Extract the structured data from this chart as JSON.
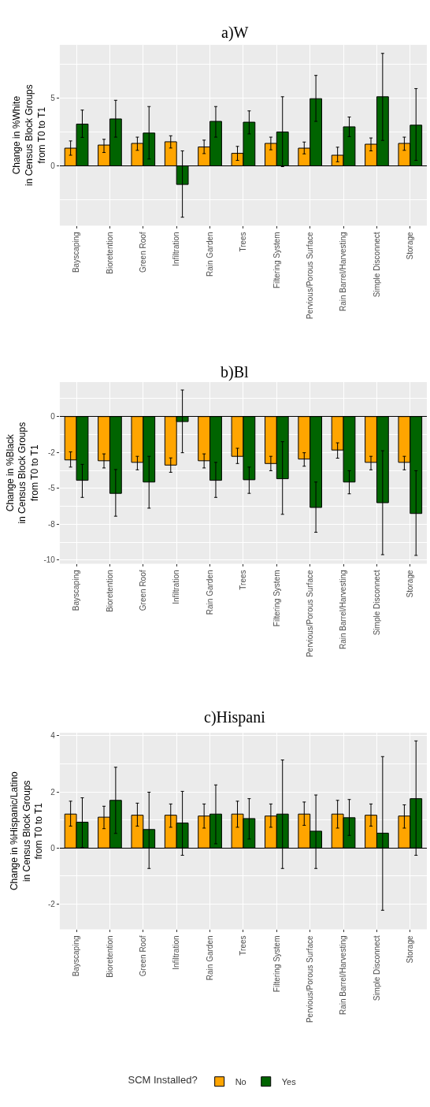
{
  "chart_data": [
    {
      "type": "bar",
      "title": "a)W",
      "ylabel": "Change in %White\nin Census Block Groups\nfrom T0 to T1",
      "categories": [
        "Bayscaping",
        "Bioretention",
        "Green Roof",
        "Infiltration",
        "Rain Garden",
        "Trees",
        "Filtering System",
        "Pervious/Porous Surface",
        "Rain Barrel/Harvesting",
        "Simple Disconnect",
        "Storage"
      ],
      "ylim": [
        -4.4,
        8.9
      ],
      "yticks": [
        0,
        5
      ],
      "grid": true,
      "legend": "bottom",
      "legend_title": "SCM Installed?",
      "series": [
        {
          "name": "No",
          "color": "#ffa500",
          "values": [
            1.3,
            1.53,
            1.65,
            1.77,
            1.39,
            0.92,
            1.65,
            1.3,
            0.78,
            1.59,
            1.65
          ],
          "errors": [
            [
              0.78,
              1.83
            ],
            [
              0.98,
              1.95
            ],
            [
              1.14,
              2.11
            ],
            [
              1.31,
              2.21
            ],
            [
              0.9,
              1.89
            ],
            [
              0.4,
              1.43
            ],
            [
              1.18,
              2.11
            ],
            [
              0.88,
              1.75
            ],
            [
              0.3,
              1.37
            ],
            [
              1.1,
              2.05
            ],
            [
              1.14,
              2.11
            ]
          ]
        },
        {
          "name": "Yes",
          "color": "#006400",
          "values": [
            3.07,
            3.45,
            2.41,
            -1.37,
            3.27,
            3.21,
            2.49,
            4.94,
            2.87,
            5.08,
            2.99
          ],
          "errors": [
            [
              2.09,
              4.1
            ],
            [
              2.11,
              4.82
            ],
            [
              0.5,
              4.36
            ],
            [
              -3.78,
              1.1
            ],
            [
              2.11,
              4.36
            ],
            [
              2.35,
              4.04
            ],
            [
              -0.06,
              5.08
            ],
            [
              3.27,
              6.65
            ],
            [
              2.15,
              3.59
            ],
            [
              1.87,
              8.27
            ],
            [
              0.4,
              5.68
            ]
          ]
        }
      ]
    },
    {
      "type": "bar",
      "title": "b)Bl",
      "ylabel": "Change in %Black\nin Census Block Groups\nfrom T0 to T1",
      "categories": [
        "Bayscaping",
        "Bioretention",
        "Green Roof",
        "Infiltration",
        "Rain Garden",
        "Trees",
        "Filtering System",
        "Pervious/Porous Surface",
        "Rain Barrel/Harvesting",
        "Simple Disconnect",
        "Storage"
      ],
      "ylim": [
        -10.25,
        2.4
      ],
      "yticks": [
        0,
        {
          "value": -2.5,
          "label": "-2"
        },
        -5,
        {
          "value": -7.5,
          "label": "-8"
        },
        -10
      ],
      "grid": true,
      "series": [
        {
          "color": "#ffa500",
          "values": [
            -3.02,
            -3.08,
            -3.19,
            -3.38,
            -3.08,
            -2.77,
            -3.27,
            -2.96,
            -2.33,
            -3.19,
            -3.19
          ],
          "errors": [
            [
              -3.52,
              -2.46
            ],
            [
              -3.58,
              -2.6
            ],
            [
              -3.71,
              -2.77
            ],
            [
              -3.88,
              -2.88
            ],
            [
              -3.58,
              -2.6
            ],
            [
              -3.27,
              -2.21
            ],
            [
              -3.77,
              -2.77
            ],
            [
              -3.46,
              -2.52
            ],
            [
              -2.9,
              -1.83
            ],
            [
              -3.71,
              -2.77
            ],
            [
              -3.71,
              -2.77
            ]
          ]
        },
        {
          "color": "#006400",
          "values": [
            -4.44,
            -5.35,
            -4.56,
            -0.35,
            -4.44,
            -4.4,
            -4.33,
            -6.33,
            -4.56,
            -6.0,
            -6.75
          ],
          "errors": [
            [
              -5.63,
              -3.33
            ],
            [
              -6.94,
              -3.69
            ],
            [
              -6.38,
              -2.77
            ],
            [
              -2.52,
              1.85
            ],
            [
              -5.63,
              -3.19
            ],
            [
              -5.35,
              -3.52
            ],
            [
              -6.81,
              -1.75
            ],
            [
              -8.06,
              -4.56
            ],
            [
              -5.38,
              -3.77
            ],
            [
              -9.62,
              -2.38
            ],
            [
              -9.67,
              -3.77
            ]
          ]
        }
      ]
    },
    {
      "type": "bar",
      "title": "c)Hispani",
      "ylabel": "Change in %Hispanic/Latino\nin Census Block Groups\nfrom T0 to T1",
      "categories": [
        "Bayscaping",
        "Bioretention",
        "Green Roof",
        "Infiltration",
        "Rain Garden",
        "Trees",
        "Filtering System",
        "Pervious/Porous Surface",
        "Rain Barrel/Harvesting",
        "Simple Disconnect",
        "Storage"
      ],
      "ylim": [
        -2.9,
        4.11
      ],
      "yticks": [
        -2,
        0,
        2,
        4
      ],
      "grid": true,
      "series": [
        {
          "color": "#ffa500",
          "values": [
            1.21,
            1.1,
            1.17,
            1.17,
            1.14,
            1.21,
            1.14,
            1.21,
            1.21,
            1.17,
            1.14
          ],
          "errors": [
            [
              0.78,
              1.67
            ],
            [
              0.69,
              1.49
            ],
            [
              0.78,
              1.6
            ],
            [
              0.74,
              1.57
            ],
            [
              0.71,
              1.57
            ],
            [
              0.74,
              1.67
            ],
            [
              0.74,
              1.57
            ],
            [
              0.81,
              1.64
            ],
            [
              0.71,
              1.7
            ],
            [
              0.78,
              1.57
            ],
            [
              0.71,
              1.54
            ]
          ]
        },
        {
          "color": "#006400",
          "values": [
            0.92,
            1.7,
            0.66,
            0.89,
            1.21,
            1.05,
            1.21,
            0.6,
            1.08,
            0.53,
            1.76
          ],
          "errors": [
            [
              0.02,
              1.79
            ],
            [
              0.52,
              2.88
            ],
            [
              -0.73,
              1.99
            ],
            [
              -0.26,
              2.02
            ],
            [
              0.15,
              2.25
            ],
            [
              0.32,
              1.76
            ],
            [
              -0.73,
              3.14
            ],
            [
              -0.73,
              1.89
            ],
            [
              0.45,
              1.73
            ],
            [
              -2.22,
              3.26
            ],
            [
              -0.26,
              3.82
            ]
          ]
        }
      ]
    }
  ]
}
